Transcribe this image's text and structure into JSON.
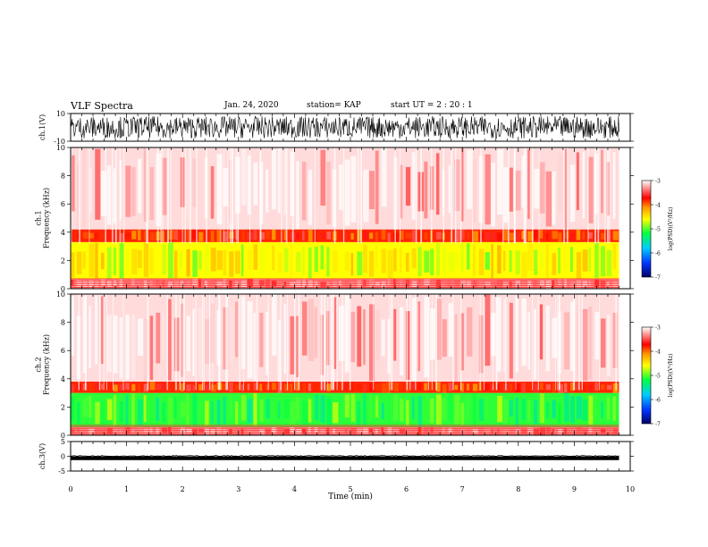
{
  "header": {
    "title": "VLF Spectra",
    "date": "Jan. 24, 2020",
    "station": "station= KAP",
    "start": "start  UT  =    2  : 20 : 1"
  },
  "chart_data": [
    {
      "type": "line",
      "panel": "channel-1-waveform",
      "ylabel": "ch.1(V)",
      "ylim": [
        -10,
        10
      ],
      "yticks": [
        "10",
        "-10"
      ],
      "xlim": [
        0,
        10
      ],
      "data_extent_x": [
        0,
        9.8
      ],
      "approx_range": [
        -8,
        8
      ]
    },
    {
      "type": "heatmap",
      "panel": "channel-1-spectrogram",
      "ylabel": "ch.1\nFrequency (kHz)",
      "ylim": [
        0,
        10
      ],
      "yticks": [
        "0",
        "2",
        "4",
        "6",
        "8",
        "10"
      ],
      "xlim": [
        0,
        10
      ],
      "data_extent_x": [
        0,
        9.8
      ],
      "band_layers_kHz": [
        {
          "from": 0,
          "to": 0.7,
          "level": -3.3
        },
        {
          "from": 0.7,
          "to": 3.3,
          "level": -4.6
        },
        {
          "from": 3.3,
          "to": 4.2,
          "level": -3.8
        },
        {
          "from": 4.2,
          "to": 10,
          "level": -3.1
        }
      ],
      "colorbar": {
        "label": "log(PSD)(V²/Hz)",
        "range": [
          -7,
          -3
        ],
        "ticks": [
          "-3",
          "-4",
          "-5",
          "-6",
          "-7"
        ]
      }
    },
    {
      "type": "heatmap",
      "panel": "channel-2-spectrogram",
      "ylabel": "ch.2\nFrequency (kHz)",
      "ylim": [
        0,
        10
      ],
      "yticks": [
        "0",
        "2",
        "4",
        "6",
        "8",
        "10"
      ],
      "xlim": [
        0,
        10
      ],
      "data_extent_x": [
        0,
        9.8
      ],
      "band_layers_kHz": [
        {
          "from": 0,
          "to": 0.6,
          "level": -3.3
        },
        {
          "from": 0.6,
          "to": 3.0,
          "level": -5.1
        },
        {
          "from": 3.0,
          "to": 3.8,
          "level": -3.8
        },
        {
          "from": 3.8,
          "to": 10,
          "level": -3.1
        }
      ],
      "colorbar": {
        "label": "log(PSD)(V²/Hz)",
        "range": [
          -7,
          -3
        ],
        "ticks": [
          "-3",
          "-4",
          "-5",
          "-6",
          "-7"
        ]
      }
    },
    {
      "type": "line",
      "panel": "channel-3-waveform",
      "ylabel": "ch.3(V)",
      "ylim": [
        -5,
        5
      ],
      "yticks": [
        "5",
        "0",
        "-5"
      ],
      "xlim": [
        0,
        10
      ],
      "data_extent_x": [
        0,
        9.8
      ],
      "approx_range": [
        -1.3,
        0
      ]
    }
  ],
  "x_axis": {
    "label": "Time (min)",
    "ticks": [
      "0",
      "1",
      "2",
      "3",
      "4",
      "5",
      "6",
      "7",
      "8",
      "9",
      "10"
    ]
  },
  "colors": {
    "colormap": [
      "#000066",
      "#0033ff",
      "#00ccff",
      "#00ff44",
      "#ffff00",
      "#ff9900",
      "#ff0000",
      "#ffffff"
    ],
    "line": "#000000"
  }
}
